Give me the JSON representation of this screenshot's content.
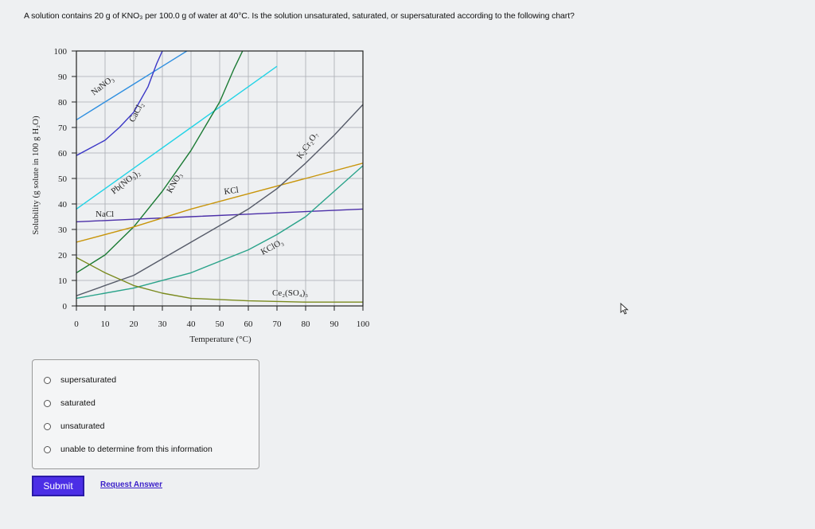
{
  "question": {
    "text": "A solution contains 20 g of KNO₃ per 100.0 g of water at 40°C. Is the solution unsaturated, saturated, or supersaturated according to the following chart?"
  },
  "chart_data": {
    "type": "line",
    "title": "",
    "xlabel": "Temperature (°C)",
    "ylabel": "Solubility (g solute in 100 g H₂O)",
    "xlim": [
      0,
      100
    ],
    "ylim": [
      0,
      100
    ],
    "xticks": [
      "0",
      "10",
      "20",
      "30",
      "40",
      "50",
      "60",
      "70",
      "80",
      "90",
      "100"
    ],
    "yticks": [
      "0",
      "10",
      "20",
      "30",
      "40",
      "50",
      "60",
      "70",
      "80",
      "90",
      "100"
    ],
    "grid": true,
    "series": [
      {
        "name": "NaNO₃",
        "color": "#2f8fe0",
        "points": [
          [
            0,
            73
          ],
          [
            10,
            80
          ],
          [
            20,
            87
          ],
          [
            30,
            94
          ],
          [
            40,
            101
          ]
        ]
      },
      {
        "name": "CaCl₂",
        "color": "#3a36c6",
        "points": [
          [
            0,
            59
          ],
          [
            5,
            62
          ],
          [
            10,
            65
          ],
          [
            15,
            70
          ],
          [
            20,
            76
          ],
          [
            25,
            86
          ],
          [
            28,
            95
          ],
          [
            30,
            100
          ]
        ]
      },
      {
        "name": "Pb(NO₃)₂",
        "color": "#22d3e6",
        "points": [
          [
            0,
            38
          ],
          [
            20,
            54
          ],
          [
            40,
            70
          ],
          [
            60,
            86
          ],
          [
            70,
            94
          ]
        ]
      },
      {
        "name": "KNO₃",
        "color": "#1a7a33",
        "points": [
          [
            0,
            13
          ],
          [
            10,
            20
          ],
          [
            20,
            31
          ],
          [
            30,
            45
          ],
          [
            40,
            61
          ],
          [
            50,
            80
          ],
          [
            55,
            93
          ],
          [
            58,
            100
          ]
        ]
      },
      {
        "name": "NaCl",
        "color": "#4b2fa8",
        "points": [
          [
            0,
            33
          ],
          [
            20,
            34
          ],
          [
            40,
            35
          ],
          [
            60,
            36
          ],
          [
            80,
            37
          ],
          [
            100,
            38
          ]
        ]
      },
      {
        "name": "KCl",
        "color": "#c8950a",
        "points": [
          [
            0,
            25
          ],
          [
            20,
            31
          ],
          [
            40,
            38
          ],
          [
            60,
            44
          ],
          [
            80,
            50
          ],
          [
            100,
            56
          ]
        ]
      },
      {
        "name": "K₂Cr₂O₇",
        "color": "#555a68",
        "points": [
          [
            0,
            4
          ],
          [
            20,
            12
          ],
          [
            40,
            25
          ],
          [
            60,
            38
          ],
          [
            70,
            46
          ],
          [
            80,
            56
          ],
          [
            90,
            67
          ],
          [
            100,
            79
          ]
        ]
      },
      {
        "name": "KClO₃",
        "color": "#2aa38a",
        "points": [
          [
            0,
            3
          ],
          [
            20,
            7
          ],
          [
            40,
            13
          ],
          [
            60,
            22
          ],
          [
            70,
            28
          ],
          [
            80,
            35
          ],
          [
            90,
            45
          ],
          [
            100,
            55
          ]
        ]
      },
      {
        "name": "Ce₂(SO₄)₃",
        "color": "#7a8a1e",
        "points": [
          [
            0,
            19
          ],
          [
            10,
            13
          ],
          [
            20,
            8
          ],
          [
            30,
            5
          ],
          [
            40,
            3
          ],
          [
            60,
            2
          ],
          [
            80,
            1.5
          ],
          [
            100,
            1.5
          ]
        ]
      }
    ]
  },
  "choices": [
    {
      "label": "supersaturated"
    },
    {
      "label": "saturated"
    },
    {
      "label": "unsaturated"
    },
    {
      "label": "unable to determine from this information"
    }
  ],
  "buttons": {
    "submit": "Submit",
    "request": "Request Answer"
  },
  "colors": {
    "submit_bg": "#4b2ee6",
    "link": "#3a1fc9"
  },
  "icons": {
    "cursor": "arrow-cursor-icon"
  }
}
